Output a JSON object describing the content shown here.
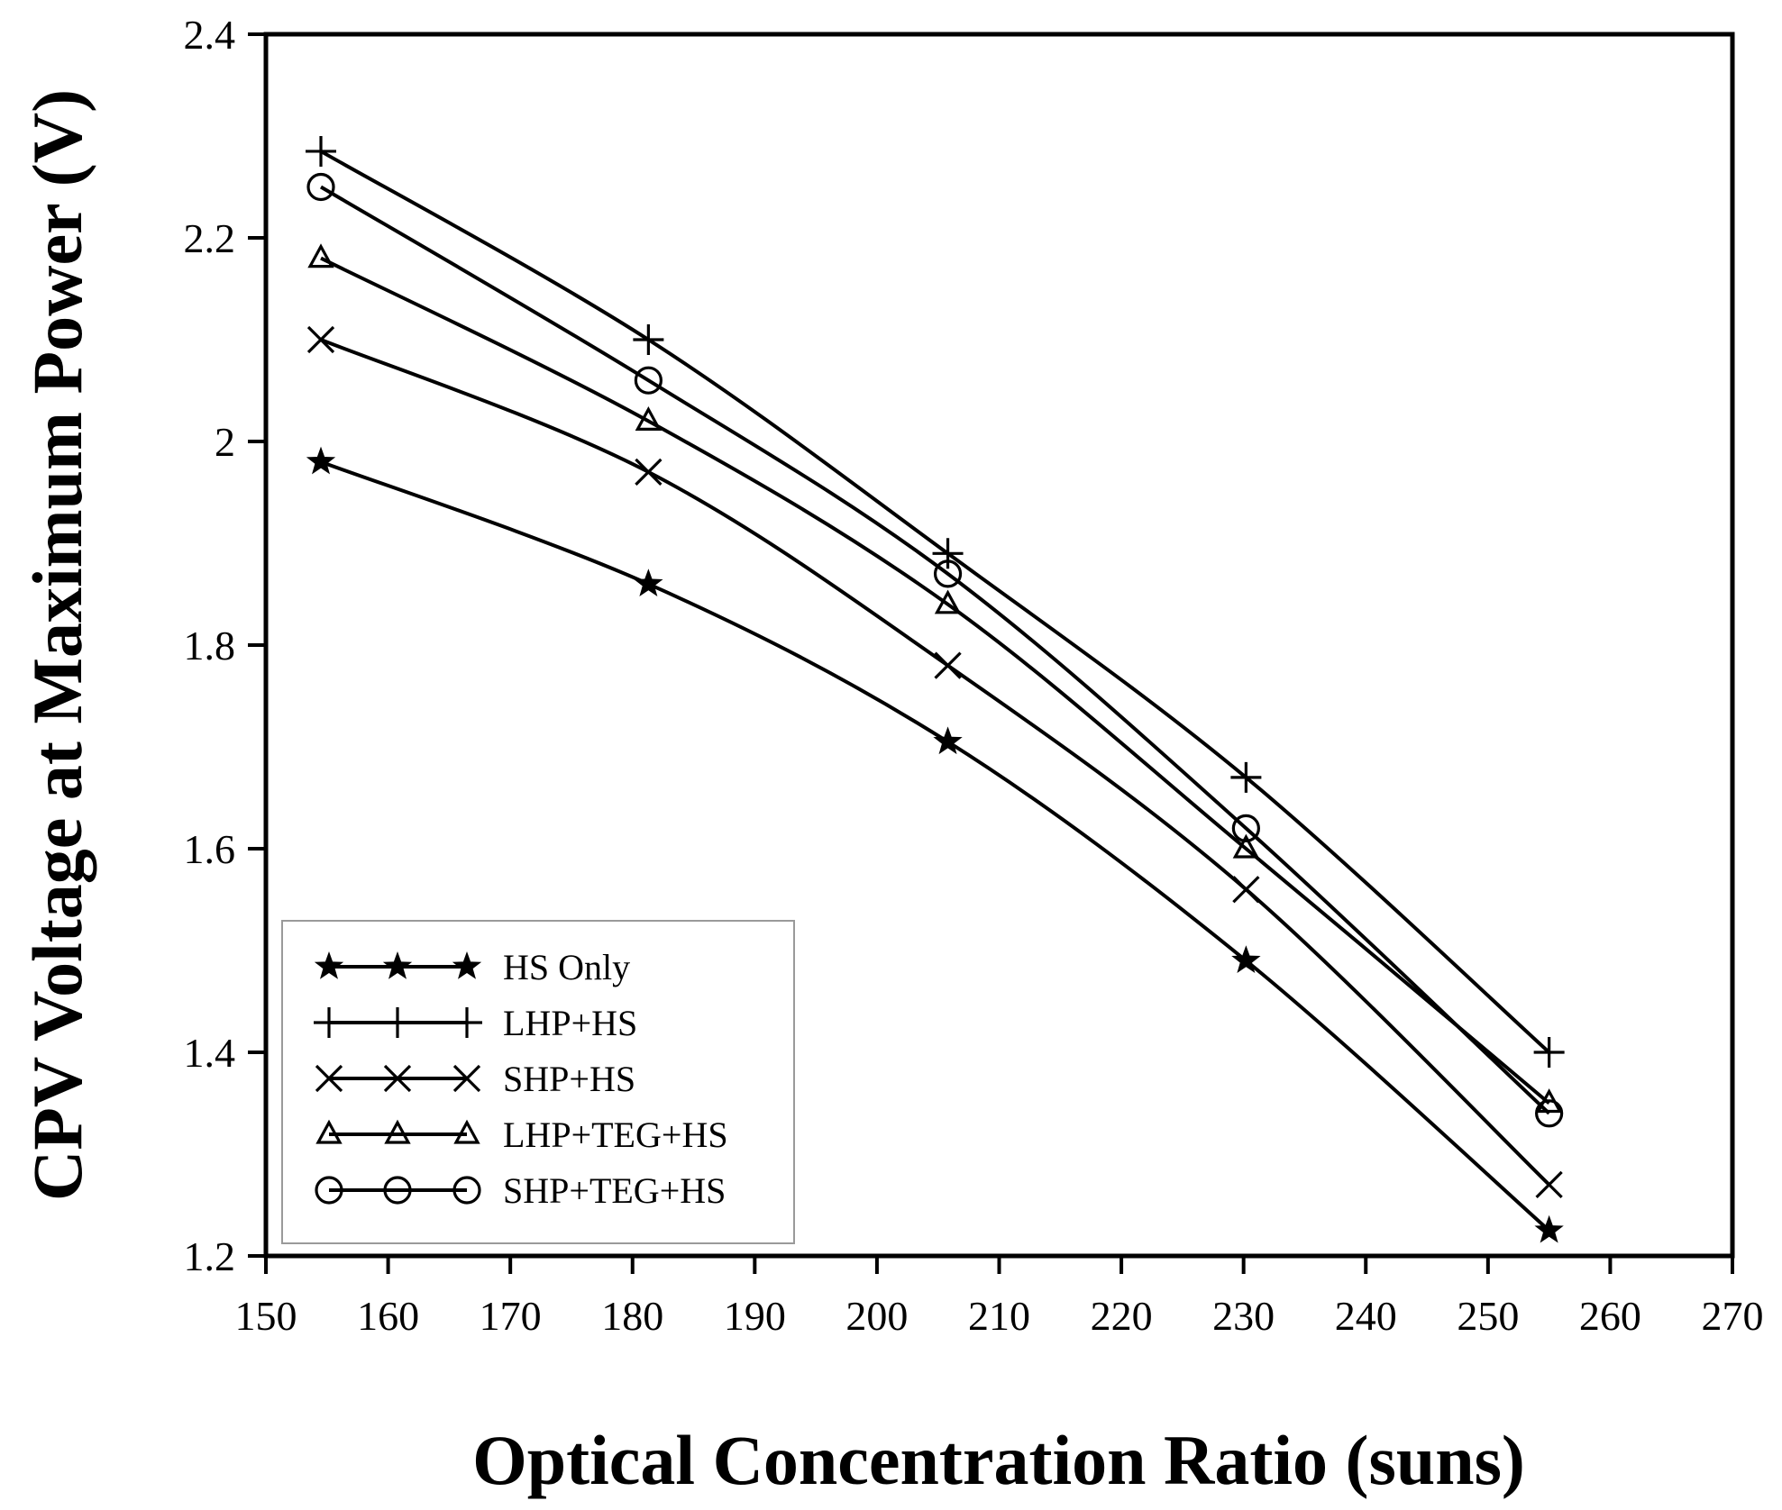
{
  "chart_data": {
    "type": "line",
    "title": "",
    "xlabel": "Optical Concentration Ratio (suns)",
    "ylabel": "CPV Voltage at Maximum Power (V)",
    "xlim": [
      150,
      270
    ],
    "ylim": [
      1.2,
      2.4
    ],
    "xticks": [
      150,
      160,
      170,
      180,
      190,
      200,
      210,
      220,
      230,
      240,
      250,
      260,
      270
    ],
    "xtick_labels": [
      "150",
      "160",
      "170",
      "180",
      "190",
      "200",
      "210",
      "220",
      "230",
      "240",
      "250",
      "260",
      "270"
    ],
    "yticks": [
      1.2,
      1.4,
      1.6,
      1.8,
      2.0,
      2.2,
      2.4
    ],
    "ytick_labels": [
      "1.2",
      "1.4",
      "1.6",
      "1.8",
      "2",
      "2.2",
      "2.4"
    ],
    "grid": false,
    "legend_position": "bottom-left",
    "x": [
      154.5,
      181.3,
      205.8,
      230.2,
      255
    ],
    "series": [
      {
        "name": "HS Only",
        "marker": "star",
        "values": [
          1.98,
          1.86,
          1.705,
          1.49,
          1.225
        ]
      },
      {
        "name": "LHP+HS",
        "marker": "plus",
        "values": [
          2.285,
          2.1,
          1.89,
          1.67,
          1.4
        ]
      },
      {
        "name": "SHP+HS",
        "marker": "cross",
        "values": [
          2.1,
          1.97,
          1.78,
          1.56,
          1.27
        ]
      },
      {
        "name": "LHP+TEG+HS",
        "marker": "triangle",
        "values": [
          2.18,
          2.02,
          1.84,
          1.6,
          1.35
        ]
      },
      {
        "name": "SHP+TEG+HS",
        "marker": "circle",
        "values": [
          2.25,
          2.06,
          1.87,
          1.62,
          1.34
        ]
      }
    ]
  }
}
